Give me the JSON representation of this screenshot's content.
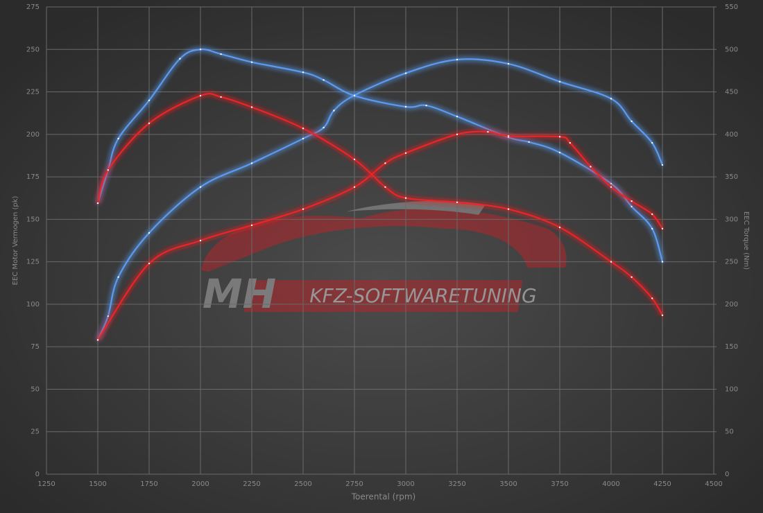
{
  "chart_data": {
    "type": "line",
    "x_label": "Toerental (rpm)",
    "y_label": "EEC Motor Vermogen (pk)",
    "y2_label": "EEC Torque (Nm)",
    "watermark": {
      "brand": "MH",
      "text": "KFZ-SOFTWARETUNING"
    },
    "xlim": [
      1250,
      4500
    ],
    "xticks": [
      1250,
      1500,
      1750,
      2000,
      2250,
      2500,
      2750,
      3000,
      3250,
      3500,
      3750,
      4000,
      4250,
      4500
    ],
    "ylim": [
      0,
      275
    ],
    "yticks": [
      0,
      25,
      50,
      75,
      100,
      125,
      150,
      175,
      200,
      225,
      250,
      275
    ],
    "y2lim": [
      0,
      550
    ],
    "y2ticks": [
      0,
      50,
      100,
      150,
      200,
      250,
      300,
      350,
      400,
      450,
      500,
      550
    ],
    "grid": true,
    "series": [
      {
        "color": "#5b9bf0",
        "axis": "y",
        "x": [
          1500,
          1550,
          1600,
          1750,
          2000,
          2250,
          2500,
          2600,
          2650,
          2750,
          3000,
          3250,
          3500,
          3750,
          4000,
          4100,
          4200,
          4250
        ],
        "values": [
          79,
          93,
          116,
          142,
          169,
          183,
          197.5,
          204,
          214,
          223,
          236,
          244,
          241.5,
          231,
          221,
          207.7,
          195,
          182
        ]
      },
      {
        "color": "#5b9bf0",
        "axis": "y2",
        "x": [
          1500,
          1550,
          1600,
          1750,
          1900,
          2000,
          2100,
          2250,
          2500,
          2600,
          2750,
          3000,
          3100,
          3250,
          3500,
          3600,
          3750,
          4000,
          4100,
          4200,
          4250
        ],
        "values": [
          319,
          358,
          395,
          440,
          489,
          500,
          494.5,
          485,
          473,
          464,
          445.5,
          432.5,
          434,
          421,
          396.5,
          391,
          378.6,
          342,
          315,
          289,
          250
        ]
      },
      {
        "color": "#e8262c",
        "axis": "y",
        "x": [
          1500,
          1750,
          2000,
          2250,
          2500,
          2750,
          2900,
          3000,
          3250,
          3400,
          3500,
          3750,
          3800,
          3900,
          4000,
          4100,
          4200,
          4250
        ],
        "values": [
          79,
          124,
          137.5,
          146.5,
          156,
          169,
          183,
          189,
          200,
          201.5,
          199,
          198.6,
          195,
          181,
          169,
          160.7,
          153,
          144.5
        ]
      },
      {
        "color": "#e8262c",
        "axis": "y2",
        "x": [
          1500,
          1550,
          1750,
          2000,
          2100,
          2250,
          2500,
          2750,
          2900,
          3000,
          3250,
          3500,
          3750,
          4000,
          4100,
          4200,
          4250
        ],
        "values": [
          319,
          358,
          413,
          445.5,
          444,
          432,
          407,
          370.5,
          338,
          325,
          320,
          312,
          290.5,
          250,
          232,
          207,
          187
        ]
      }
    ]
  }
}
